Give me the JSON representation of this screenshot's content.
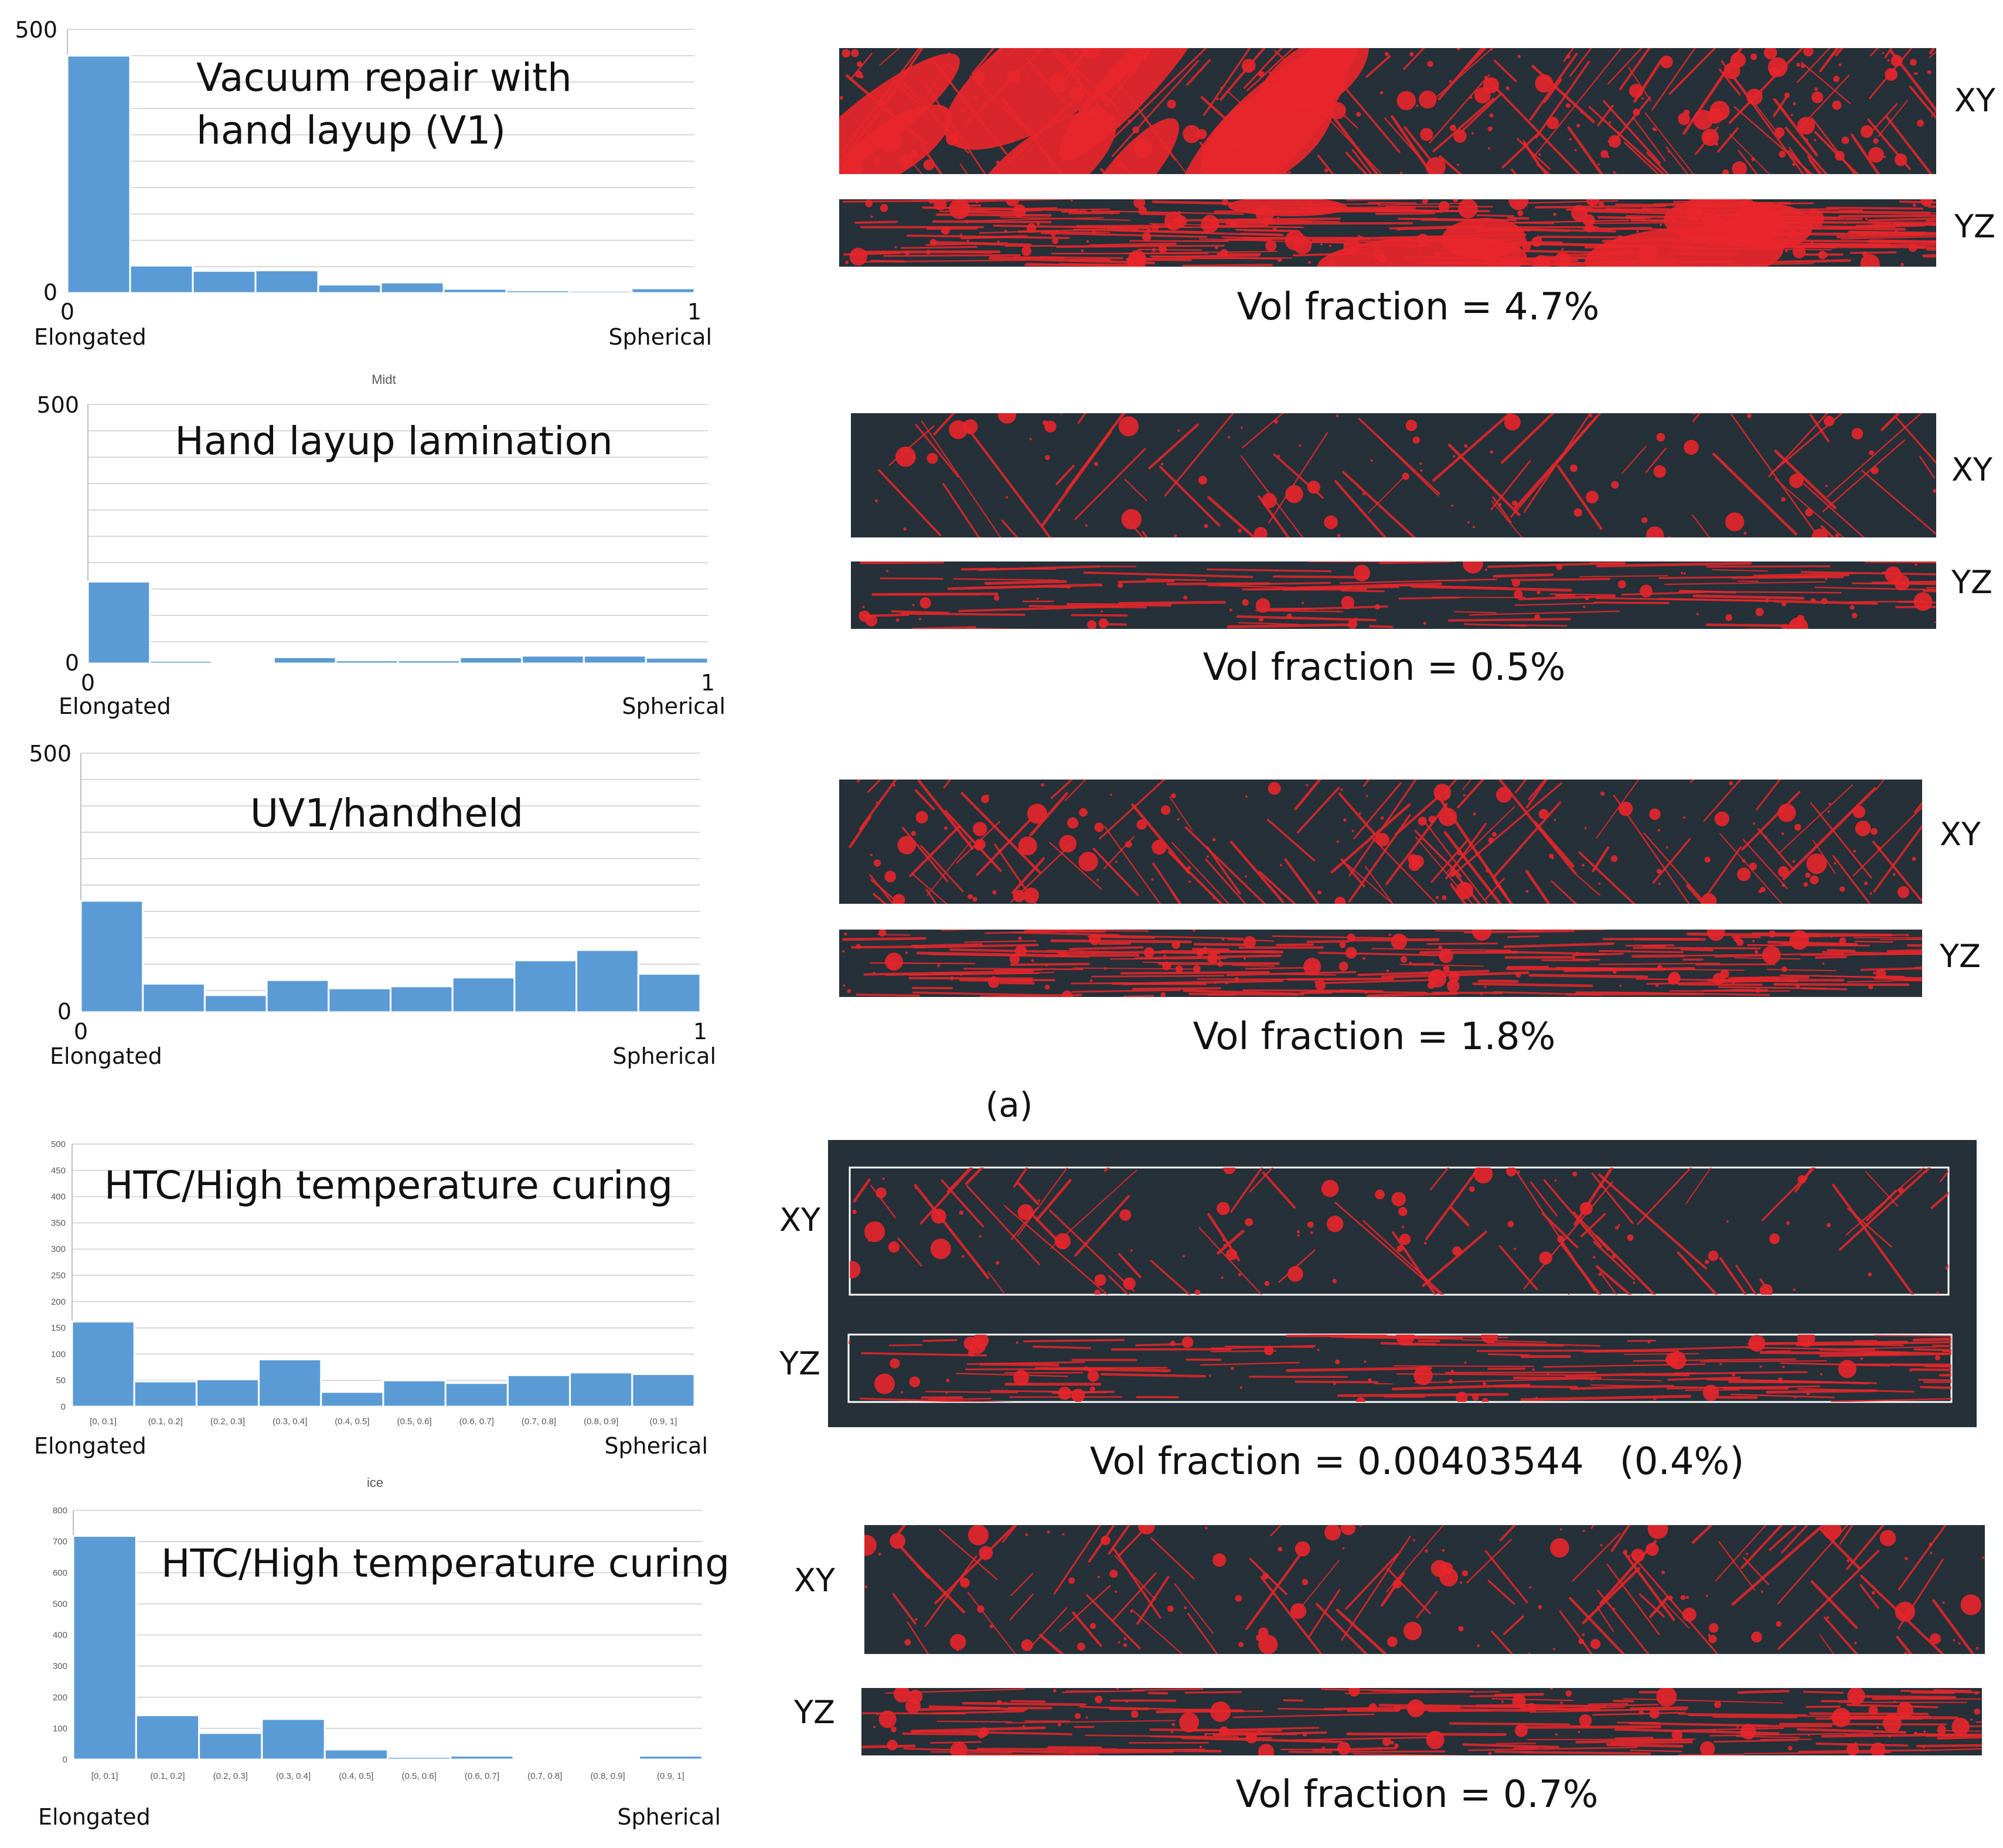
{
  "chart_data": [
    {
      "type": "bar",
      "title": "Vacuum repair with hand layup (V1)",
      "y_ticks": [
        "500",
        "0"
      ],
      "x_left_tick": "0",
      "x_right_tick": "1",
      "x_left_label": "Elongated",
      "x_right_label": "Spherical",
      "note": "",
      "ylim": [
        0,
        500
      ],
      "values": [
        450,
        52,
        42,
        43,
        16,
        20,
        8,
        5,
        4,
        9
      ]
    },
    {
      "type": "bar",
      "title": "Hand layup lamination",
      "y_ticks": [
        "500",
        "0"
      ],
      "x_left_tick": "0",
      "x_right_tick": "1",
      "x_left_label": "Elongated",
      "x_right_label": "Spherical",
      "note": "Midt",
      "ylim": [
        0,
        500
      ],
      "values": [
        158,
        5,
        2,
        12,
        6,
        6,
        12,
        15,
        15,
        11
      ]
    },
    {
      "type": "bar",
      "title": "UV1/handheld",
      "y_ticks": [
        "500",
        "0"
      ],
      "x_left_tick": "0",
      "x_right_tick": "1",
      "x_left_label": "Elongated",
      "x_right_label": "Spherical",
      "note": "",
      "ylim": [
        0,
        500
      ],
      "values": [
        215,
        55,
        33,
        62,
        46,
        50,
        67,
        100,
        120,
        74
      ]
    },
    {
      "type": "bar",
      "title": "HTC/High temperature curing",
      "y_ticks": [
        "500",
        "450",
        "400",
        "350",
        "300",
        "250",
        "200",
        "150",
        "100",
        "50",
        "0"
      ],
      "categories": [
        "[0, 0.1]",
        "(0.1, 0.2]",
        "(0.2, 0.3]",
        "(0.3, 0.4]",
        "(0.4, 0.5]",
        "(0.5, 0.6]",
        "(0.6, 0.7]",
        "(0.7, 0.8]",
        "(0.8, 0.9]",
        "(0.9, 1]"
      ],
      "x_left_label": "Elongated",
      "x_right_label": "Spherical",
      "note": "",
      "ylim": [
        0,
        500
      ],
      "values": [
        162,
        48,
        52,
        90,
        28,
        50,
        45,
        60,
        65,
        62
      ]
    },
    {
      "type": "bar",
      "title": "HTC/High temperature curing",
      "y_ticks": [
        "800",
        "700",
        "600",
        "500",
        "400",
        "300",
        "200",
        "100",
        "0"
      ],
      "categories": [
        "[0, 0.1]",
        "(0.1, 0.2]",
        "(0.2, 0.3]",
        "(0.3, 0.4]",
        "(0.4, 0.5]",
        "(0.5, 0.6]",
        "(0.6, 0.7]",
        "(0.7, 0.8]",
        "(0.8, 0.9]",
        "(0.9, 1]"
      ],
      "x_left_label": "Elongated",
      "x_right_label": "Spherical",
      "note": "ice",
      "ylim": [
        0,
        800
      ],
      "values": [
        718,
        142,
        85,
        130,
        32,
        8,
        12,
        5,
        4,
        12
      ]
    }
  ],
  "scans": [
    {
      "label_xy": "XY",
      "label_yz": "YZ",
      "vol": "Vol fraction = 4.7%"
    },
    {
      "label_xy": "XY",
      "label_yz": "YZ",
      "vol": "Vol fraction = 0.5%"
    },
    {
      "label_xy": "XY",
      "label_yz": "YZ",
      "vol": "Vol fraction = 1.8%"
    },
    {
      "label_xy": "XY",
      "label_yz": "YZ",
      "vol": "Vol fraction = 0.00403544   (0.4%)"
    },
    {
      "label_xy": "XY",
      "label_yz": "YZ",
      "vol": "Vol fraction = 0.7%"
    }
  ],
  "panel_label": "(a)",
  "colors": {
    "bar": "#5b9bd5",
    "scan_bg": "#253038",
    "pore": "#e8262b"
  }
}
